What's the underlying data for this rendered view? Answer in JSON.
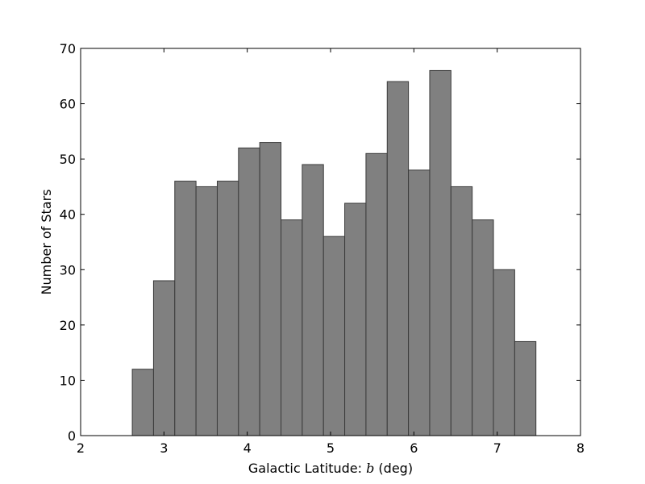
{
  "chart_data": {
    "type": "bar",
    "title": "",
    "xlabel": "Galactic Latitude: ",
    "xlabel_var": "b",
    "xlabel_unit": " (deg)",
    "ylabel": "Number of Stars",
    "xlim": [
      2,
      8
    ],
    "ylim": [
      0,
      70
    ],
    "xticks": [
      "2",
      "3",
      "4",
      "5",
      "6",
      "7",
      "8"
    ],
    "yticks": [
      "0",
      "10",
      "20",
      "30",
      "40",
      "50",
      "60",
      "70"
    ],
    "grid": false,
    "bin_edges": [
      2.62,
      2.875,
      3.13,
      3.385,
      3.64,
      3.895,
      4.15,
      4.405,
      4.66,
      4.915,
      5.17,
      5.425,
      5.68,
      5.935,
      6.19,
      6.445,
      6.7,
      6.955,
      7.21,
      7.465
    ],
    "values": [
      12,
      28,
      46,
      45,
      46,
      52,
      53,
      39,
      49,
      36,
      42,
      51,
      64,
      48,
      66,
      45,
      39,
      30,
      17
    ],
    "bar_color": "#808080",
    "edge_color": "#3a3a3a"
  }
}
